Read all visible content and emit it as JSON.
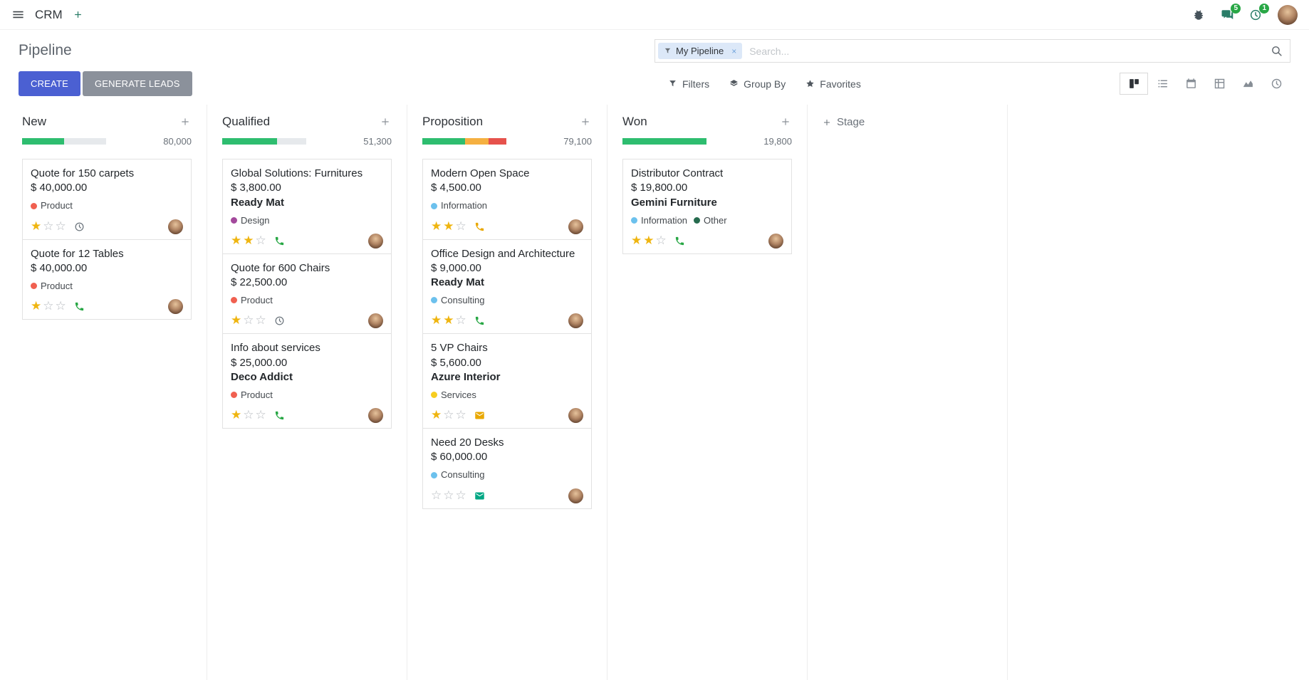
{
  "navbar": {
    "app_name": "CRM",
    "message_badge": "5",
    "activity_badge": "1"
  },
  "control_panel": {
    "title": "Pipeline",
    "search": {
      "facet_label": "My Pipeline",
      "placeholder": "Search...",
      "facet_remove_icon": "×"
    },
    "buttons": [
      {
        "label": "CREATE"
      },
      {
        "label": "GENERATE LEADS"
      }
    ],
    "filter_menus": [
      {
        "id": "filters",
        "label": "Filters",
        "icon": "filter"
      },
      {
        "id": "group-by",
        "label": "Group By",
        "icon": "layers"
      },
      {
        "id": "favorites",
        "label": "Favorites",
        "icon": "star"
      }
    ],
    "view_switcher": [
      {
        "id": "kanban",
        "active": true
      },
      {
        "id": "list",
        "active": false
      },
      {
        "id": "calendar",
        "active": false
      },
      {
        "id": "pivot",
        "active": false
      },
      {
        "id": "graph",
        "active": false
      },
      {
        "id": "activity",
        "active": false
      }
    ]
  },
  "board": {
    "add_stage_label": "Stage",
    "columns": [
      {
        "name": "New",
        "total": "80,000",
        "progress": [
          {
            "color": "#2ebd6f",
            "pct": 50
          }
        ],
        "cards": [
          {
            "title": "Quote for 150 carpets",
            "amount": "$ 40,000.00",
            "partner": "",
            "tags": [
              {
                "label": "Product",
                "color": "#f06050"
              }
            ],
            "stars": 1,
            "activity": {
              "type": "clock",
              "color": "#6c757d"
            }
          },
          {
            "title": "Quote for 12 Tables",
            "amount": "$ 40,000.00",
            "partner": "",
            "tags": [
              {
                "label": "Product",
                "color": "#f06050"
              }
            ],
            "stars": 1,
            "activity": {
              "type": "phone",
              "color": "#28a745"
            }
          }
        ]
      },
      {
        "name": "Qualified",
        "total": "51,300",
        "progress": [
          {
            "color": "#2ebd6f",
            "pct": 65
          }
        ],
        "cards": [
          {
            "title": "Global Solutions: Furnitures",
            "amount": "$ 3,800.00",
            "partner": "Ready Mat",
            "tags": [
              {
                "label": "Design",
                "color": "#a3499c"
              }
            ],
            "stars": 2,
            "activity": {
              "type": "phone",
              "color": "#28a745"
            }
          },
          {
            "title": "Quote for 600 Chairs",
            "amount": "$ 22,500.00",
            "partner": "",
            "tags": [
              {
                "label": "Product",
                "color": "#f06050"
              }
            ],
            "stars": 1,
            "activity": {
              "type": "clock",
              "color": "#6c757d"
            }
          },
          {
            "title": "Info about services",
            "amount": "$ 25,000.00",
            "partner": "Deco Addict",
            "tags": [
              {
                "label": "Product",
                "color": "#f06050"
              }
            ],
            "stars": 1,
            "activity": {
              "type": "phone",
              "color": "#28a745"
            }
          }
        ]
      },
      {
        "name": "Proposition",
        "total": "79,100",
        "progress": [
          {
            "color": "#2ebd6f",
            "pct": 51
          },
          {
            "color": "#f5b041",
            "pct": 28
          },
          {
            "color": "#e6524c",
            "pct": 21
          }
        ],
        "cards": [
          {
            "title": "Modern Open Space",
            "amount": "$ 4,500.00",
            "partner": "",
            "tags": [
              {
                "label": "Information",
                "color": "#6cc1ed"
              }
            ],
            "stars": 2,
            "activity": {
              "type": "phone",
              "color": "#e9a800"
            }
          },
          {
            "title": "Office Design and Architecture",
            "amount": "$ 9,000.00",
            "partner": "Ready Mat",
            "tags": [
              {
                "label": "Consulting",
                "color": "#6cc1ed"
              }
            ],
            "stars": 2,
            "activity": {
              "type": "phone",
              "color": "#28a745"
            }
          },
          {
            "title": "5 VP Chairs",
            "amount": "$ 5,600.00",
            "partner": "Azure Interior",
            "tags": [
              {
                "label": "Services",
                "color": "#f7cd1f"
              }
            ],
            "stars": 1,
            "activity": {
              "type": "envelope",
              "color": "#e9a800"
            }
          },
          {
            "title": "Need 20 Desks",
            "amount": "$ 60,000.00",
            "partner": "",
            "tags": [
              {
                "label": "Consulting",
                "color": "#6cc1ed"
              }
            ],
            "stars": 0,
            "activity": {
              "type": "envelope",
              "color": "#00a784"
            }
          }
        ]
      },
      {
        "name": "Won",
        "total": "19,800",
        "progress": [
          {
            "color": "#2ebd6f",
            "pct": 100
          }
        ],
        "cards": [
          {
            "title": "Distributor Contract",
            "amount": "$ 19,800.00",
            "partner": "Gemini Furniture",
            "tags": [
              {
                "label": "Information",
                "color": "#6cc1ed"
              },
              {
                "label": "Other",
                "color": "#266b4e"
              }
            ],
            "stars": 2,
            "activity": {
              "type": "phone",
              "color": "#28a745"
            }
          }
        ]
      }
    ]
  }
}
